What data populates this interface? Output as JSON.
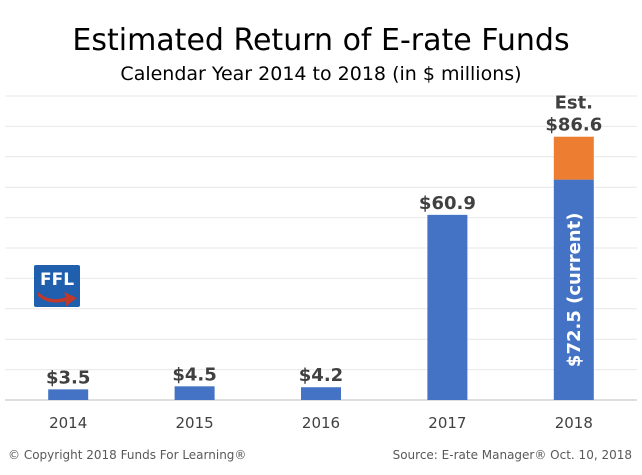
{
  "chart_data": {
    "type": "bar",
    "title": "Estimated Return of E-rate Funds",
    "subtitle": "Calendar Year 2014 to 2018 (in $ millions)",
    "categories": [
      "2014",
      "2015",
      "2016",
      "2017",
      "2018"
    ],
    "series": [
      {
        "values": [
          3.5,
          4.5,
          4.2,
          60.9,
          72.5
        ]
      },
      {
        "values": [
          0,
          0,
          0,
          0,
          14.1
        ]
      }
    ],
    "data_labels": [
      "$3.5",
      "$4.5",
      "$4.2",
      "$60.9",
      "$86.6"
    ],
    "estimate_label": "Est.",
    "current_label": "$72.5 (current)",
    "stacked": true,
    "ylim": [
      0,
      100
    ],
    "grid": true,
    "colors": {
      "current": "#4472c4",
      "estimate": "#ed7d31"
    }
  },
  "logo": {
    "text": "FFL",
    "color": "#1f5fae",
    "arrow_color": "#c0392b"
  },
  "footer": {
    "copyright": "© Copyright 2018 Funds For Learning®",
    "source": "Source: E-rate Manager® Oct. 10, 2018"
  }
}
